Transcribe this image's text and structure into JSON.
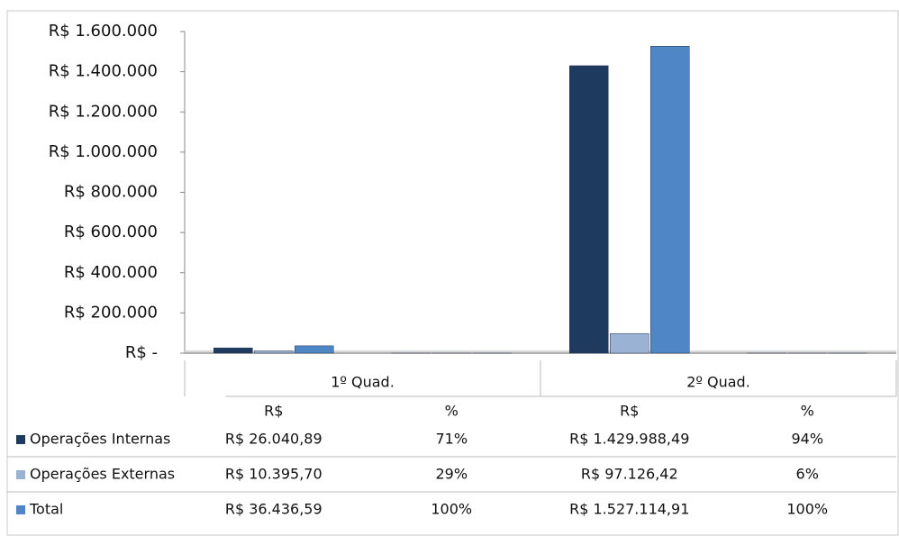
{
  "chart_data": {
    "type": "bar",
    "groups": [
      "1º Quad.",
      "2º Quad."
    ],
    "categories": [
      "R$",
      "%",
      "R$",
      "%"
    ],
    "series": [
      {
        "name": "Operações Internas",
        "color": "#1f3a5f",
        "values": [
          26040.89,
          71,
          1429988.49,
          94
        ],
        "value_labels": [
          "R$ 26.040,89",
          "71%",
          "R$ 1.429.988,49",
          "94%"
        ]
      },
      {
        "name": "Operações Externas",
        "color": "#9ab3d5",
        "values": [
          10395.7,
          29,
          97126.42,
          6
        ],
        "value_labels": [
          "R$ 10.395,70",
          "29%",
          "R$ 97.126,42",
          "6%"
        ]
      },
      {
        "name": "Total",
        "color": "#4f86c6",
        "values": [
          36436.59,
          100,
          1527114.91,
          100
        ],
        "value_labels": [
          "R$ 36.436,59",
          "100%",
          "R$ 1.527.114,91",
          "100%"
        ]
      }
    ],
    "ylim": [
      0,
      1600000
    ],
    "yticks": [
      {
        "value": 0,
        "label": "R$ -"
      },
      {
        "value": 200000,
        "label": "R$ 200.000"
      },
      {
        "value": 400000,
        "label": "R$ 400.000"
      },
      {
        "value": 600000,
        "label": "R$ 600.000"
      },
      {
        "value": 800000,
        "label": "R$ 800.000"
      },
      {
        "value": 1000000,
        "label": "R$ 1.000.000"
      },
      {
        "value": 1200000,
        "label": "R$ 1.200.000"
      },
      {
        "value": 1400000,
        "label": "R$ 1.400.000"
      },
      {
        "value": 1600000,
        "label": "R$ 1.600.000"
      }
    ],
    "grid": false
  }
}
